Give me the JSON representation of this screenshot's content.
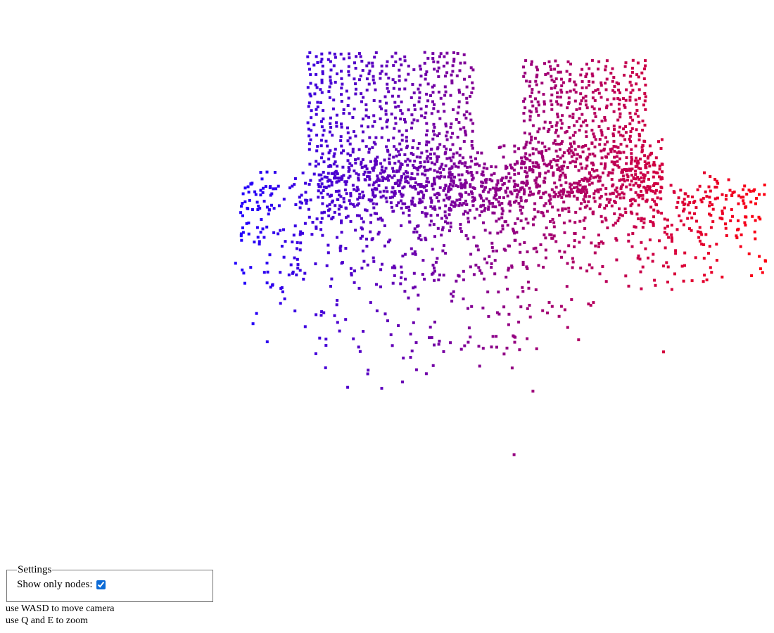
{
  "scene": {
    "gradient_start_color": "#1f00ff",
    "gradient_end_color": "#ff0010",
    "node_count_visible": 2400
  },
  "settings": {
    "legend": "Settings",
    "show_only_nodes_label": "Show only nodes:",
    "show_only_nodes_checked": true
  },
  "help": {
    "move_text": "use WASD to move camera",
    "zoom_text": "use Q and E to zoom"
  }
}
